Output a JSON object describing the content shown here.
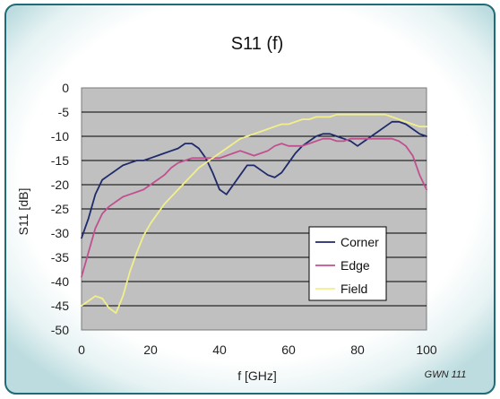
{
  "chart_data": {
    "type": "line",
    "title": "S11 (f)",
    "xlabel": "f [GHz]",
    "ylabel": "S11 [dB]",
    "xlim": [
      0,
      100
    ],
    "ylim": [
      -50,
      0
    ],
    "x_ticks": [
      0,
      20,
      40,
      60,
      80,
      100
    ],
    "y_ticks": [
      0,
      -5,
      -10,
      -15,
      -20,
      -25,
      -30,
      -35,
      -40,
      -45,
      -50
    ],
    "grid": "horizontal",
    "legend_position": "lower-right",
    "plot_background": "#c0c0c0",
    "annotation": "GWN 111",
    "series": [
      {
        "name": "Corner",
        "color": "#1f2a6b",
        "x": [
          0,
          2,
          4,
          6,
          8,
          10,
          12,
          14,
          16,
          18,
          20,
          22,
          24,
          26,
          28,
          30,
          32,
          34,
          36,
          38,
          40,
          42,
          44,
          46,
          48,
          50,
          52,
          54,
          56,
          58,
          60,
          62,
          64,
          66,
          68,
          70,
          72,
          74,
          76,
          78,
          80,
          82,
          84,
          86,
          88,
          90,
          92,
          94,
          96,
          98,
          100
        ],
        "values": [
          -31,
          -27,
          -22,
          -19,
          -18,
          -17,
          -16,
          -15.5,
          -15,
          -15,
          -14.5,
          -14,
          -13.5,
          -13,
          -12.5,
          -11.5,
          -11.5,
          -12.5,
          -14.5,
          -17.5,
          -21,
          -22,
          -20,
          -18,
          -16,
          -16,
          -17,
          -18,
          -18.5,
          -17.5,
          -15.5,
          -13.5,
          -12,
          -11,
          -10,
          -9.5,
          -9.5,
          -10,
          -10.5,
          -11,
          -12,
          -11,
          -10,
          -9,
          -8,
          -7,
          -7,
          -7.5,
          -8.5,
          -9.5,
          -10
        ]
      },
      {
        "name": "Edge",
        "color": "#c0508f",
        "x": [
          0,
          2,
          4,
          6,
          8,
          10,
          12,
          14,
          16,
          18,
          20,
          22,
          24,
          26,
          28,
          30,
          32,
          34,
          36,
          38,
          40,
          42,
          44,
          46,
          48,
          50,
          52,
          54,
          56,
          58,
          60,
          62,
          64,
          66,
          68,
          70,
          72,
          74,
          76,
          78,
          80,
          82,
          84,
          86,
          88,
          90,
          92,
          94,
          96,
          98,
          100
        ],
        "values": [
          -39,
          -34,
          -29,
          -26,
          -24.5,
          -23.5,
          -22.5,
          -22,
          -21.5,
          -21,
          -20,
          -19,
          -18,
          -16.5,
          -15.5,
          -15,
          -14.5,
          -14.5,
          -14.5,
          -14.5,
          -14.5,
          -14,
          -13.5,
          -13,
          -13.5,
          -14,
          -13.5,
          -13,
          -12,
          -11.5,
          -12,
          -12,
          -12,
          -11.5,
          -11,
          -10.5,
          -10.5,
          -11,
          -11,
          -10.5,
          -10.5,
          -10.5,
          -10.5,
          -10.5,
          -10.5,
          -10.5,
          -11,
          -12,
          -14,
          -18,
          -21
        ]
      },
      {
        "name": "Field",
        "color": "#f2ef8a",
        "x": [
          0,
          2,
          4,
          6,
          8,
          10,
          12,
          14,
          16,
          18,
          20,
          22,
          24,
          26,
          28,
          30,
          32,
          34,
          36,
          38,
          40,
          42,
          44,
          46,
          48,
          50,
          52,
          54,
          56,
          58,
          60,
          62,
          64,
          66,
          68,
          70,
          72,
          74,
          76,
          78,
          80,
          82,
          84,
          86,
          88,
          90,
          92,
          94,
          96,
          98,
          100
        ],
        "values": [
          -45,
          -44,
          -43,
          -43.5,
          -45.5,
          -46.5,
          -43,
          -38,
          -34,
          -30.5,
          -28,
          -26,
          -24,
          -22.5,
          -21,
          -19.5,
          -18,
          -16.5,
          -15.5,
          -14.5,
          -13.5,
          -12.5,
          -11.5,
          -10.5,
          -10,
          -9.5,
          -9,
          -8.5,
          -8,
          -7.5,
          -7.5,
          -7,
          -6.5,
          -6.5,
          -6,
          -6,
          -6,
          -5.5,
          -5.5,
          -5.5,
          -5.5,
          -5.5,
          -5.5,
          -5.5,
          -5.5,
          -6,
          -6.5,
          -7,
          -7.5,
          -8,
          -8
        ]
      }
    ]
  }
}
